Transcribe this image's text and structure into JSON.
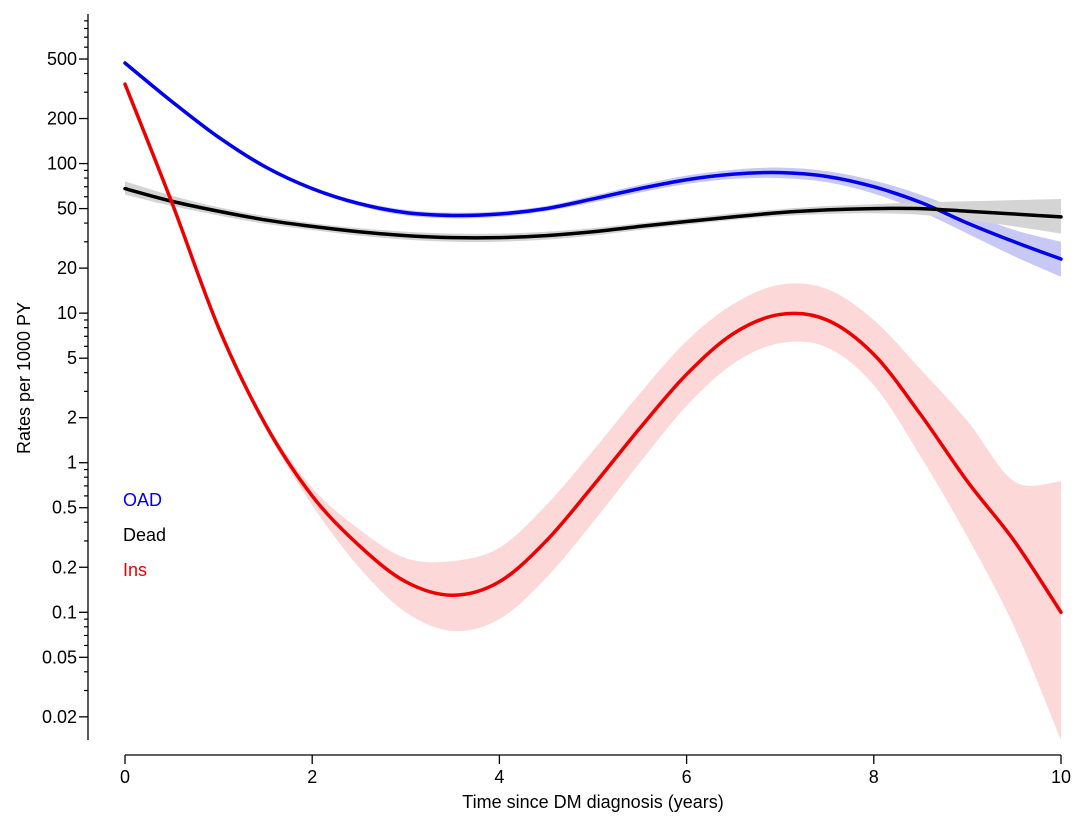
{
  "chart_data": {
    "type": "line",
    "xlabel": "Time since DM diagnosis (years)",
    "ylabel": "Rates per 1000 PY",
    "y_scale": "log",
    "xlim": [
      0,
      10
    ],
    "ylim": [
      0.014,
      1000
    ],
    "x_ticks": [
      0,
      2,
      4,
      6,
      8,
      10
    ],
    "x_tick_labels": [
      "0",
      "2",
      "4",
      "6",
      "8",
      "10"
    ],
    "y_ticks": [
      0.02,
      0.05,
      0.1,
      0.2,
      0.5,
      1,
      2,
      5,
      10,
      20,
      50,
      100,
      200,
      500
    ],
    "y_tick_labels": [
      "0.02",
      "0.05",
      "0.1",
      "0.2",
      "0.5",
      "1",
      "2",
      "5",
      "10",
      "20",
      "50",
      "100",
      "200",
      "500"
    ],
    "y_minor_ticks": [
      0.03,
      0.04,
      0.06,
      0.07,
      0.08,
      0.09,
      0.3,
      0.4,
      0.6,
      0.7,
      0.8,
      0.9,
      3,
      4,
      6,
      7,
      8,
      9,
      30,
      40,
      60,
      70,
      80,
      90,
      300,
      400,
      600,
      700,
      800,
      900
    ],
    "grid": false,
    "legend_position": "left",
    "x": [
      0,
      0.5,
      1,
      1.5,
      2,
      2.5,
      3,
      3.5,
      4,
      4.5,
      5,
      5.5,
      6,
      6.5,
      7,
      7.5,
      8,
      8.5,
      9,
      9.5,
      10
    ],
    "series": [
      {
        "name": "OAD",
        "color": "#0000ee",
        "band_color": "#c8c8f4",
        "values": [
          470,
          260,
          150,
          95,
          68,
          54,
          47,
          45,
          46,
          50,
          58,
          68,
          78,
          85,
          87,
          82,
          70,
          55,
          40,
          30,
          23
        ],
        "lower": [
          455,
          252,
          145,
          92,
          66,
          52,
          45,
          43,
          44,
          48,
          55,
          64,
          73,
          79,
          80,
          75,
          63,
          48,
          34,
          24,
          17.5
        ],
        "upper": [
          485,
          268,
          155,
          98,
          70,
          56,
          49,
          47,
          48,
          52,
          61,
          72,
          83,
          91,
          94,
          89,
          77,
          62,
          47,
          36,
          30
        ]
      },
      {
        "name": "Dead",
        "color": "#000000",
        "band_color": "#d4d4d4",
        "values": [
          68,
          56,
          48,
          42,
          38,
          35,
          33,
          32,
          32,
          33,
          35,
          38,
          41,
          44,
          47,
          49,
          50,
          50,
          48,
          46,
          44
        ],
        "lower": [
          62,
          52,
          45,
          39.5,
          36,
          33,
          31,
          30,
          30,
          31,
          33,
          36,
          39,
          42,
          44.5,
          46,
          46.5,
          45.5,
          42,
          38,
          34
        ],
        "upper": [
          76,
          61,
          51,
          44.5,
          40,
          37,
          35,
          34,
          34,
          35,
          37,
          40,
          43,
          46.5,
          49.5,
          52,
          53.5,
          55,
          56,
          57,
          58
        ]
      },
      {
        "name": "Ins",
        "color": "#ee0000",
        "band_color": "#fcd8d8",
        "values": [
          340,
          55,
          8,
          1.8,
          0.6,
          0.28,
          0.16,
          0.13,
          0.16,
          0.3,
          0.7,
          1.7,
          3.9,
          7.3,
          9.8,
          9.0,
          5.3,
          2.1,
          0.75,
          0.3,
          0.1
        ],
        "lower": [
          330,
          53,
          7.7,
          1.7,
          0.52,
          0.2,
          0.1,
          0.075,
          0.09,
          0.17,
          0.4,
          1.0,
          2.4,
          4.6,
          6.3,
          5.9,
          3.3,
          1.1,
          0.32,
          0.08,
          0.014
        ],
        "upper": [
          350,
          57,
          8.3,
          1.9,
          0.68,
          0.36,
          0.23,
          0.22,
          0.27,
          0.52,
          1.2,
          2.9,
          6.5,
          11.5,
          15.5,
          14.5,
          9.0,
          4.2,
          1.9,
          0.75,
          0.75
        ]
      }
    ]
  }
}
